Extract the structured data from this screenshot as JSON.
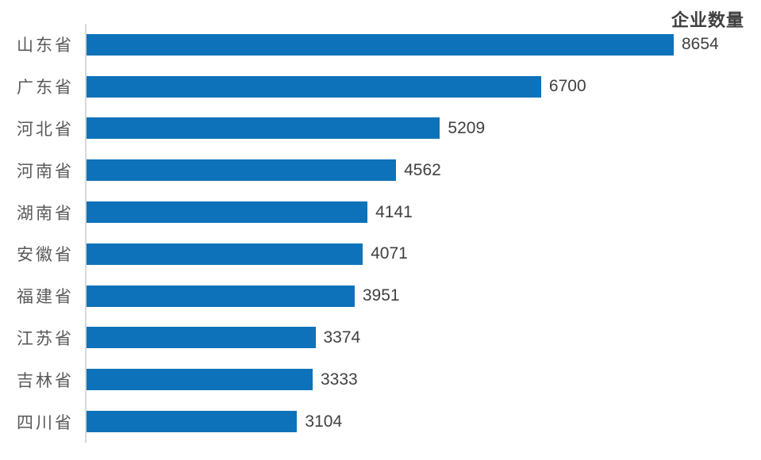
{
  "chart_data": {
    "type": "bar",
    "orientation": "horizontal",
    "title": "企业数量",
    "categories": [
      "山东省",
      "广东省",
      "河北省",
      "河南省",
      "湖南省",
      "安徽省",
      "福建省",
      "江苏省",
      "吉林省",
      "四川省"
    ],
    "values": [
      8654,
      6700,
      5209,
      4562,
      4141,
      4071,
      3951,
      3374,
      3333,
      3104
    ],
    "xlim": [
      0,
      8654
    ],
    "grid": false,
    "legend": "none",
    "data_labels": true,
    "colors": {
      "bar": "#0d72b9",
      "axis_line": "#d9d9d9",
      "category_label": "#595959",
      "value_label": "#404040",
      "title": "#3f3f3f",
      "background": "#ffffff"
    }
  }
}
